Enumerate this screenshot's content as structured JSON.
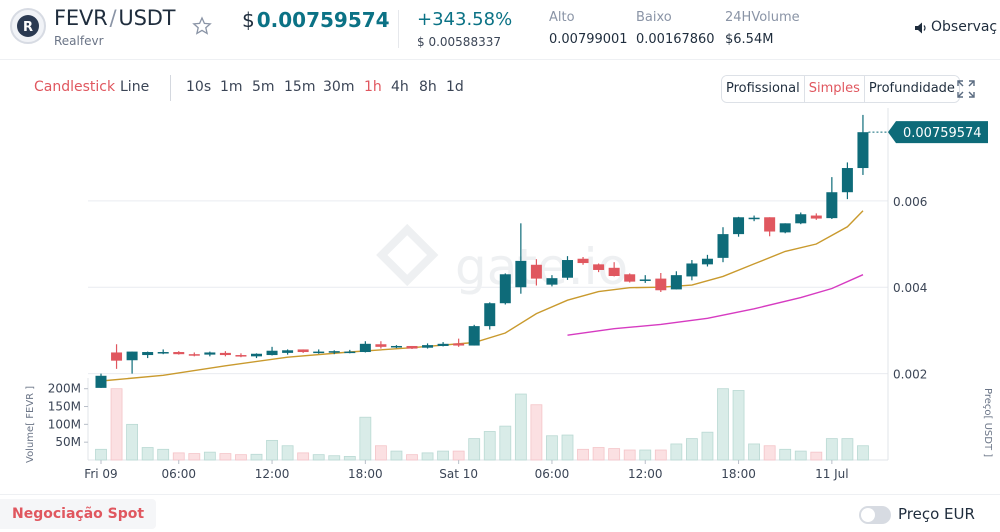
{
  "header": {
    "base": "FEVR",
    "quote": "USDT",
    "name": "Realfevr",
    "price_currency": "$",
    "price": "0.00759574",
    "change": "+343.58%",
    "price_usd": "$ 0.00588337",
    "high_label": "Alto",
    "high_value": "0.00799001",
    "low_label": "Baixo",
    "low_value": "0.00167860",
    "vol_label": "24HVolume",
    "vol_value": "$6.54M",
    "watch_label": "Observaç"
  },
  "toolbar": {
    "chart_types": [
      {
        "label": "Candlestick",
        "active": true
      },
      {
        "label": "Line",
        "active": false
      }
    ],
    "intervals": [
      {
        "label": "10s",
        "active": false
      },
      {
        "label": "1m",
        "active": false
      },
      {
        "label": "5m",
        "active": false
      },
      {
        "label": "15m",
        "active": false
      },
      {
        "label": "30m",
        "active": false
      },
      {
        "label": "1h",
        "active": true
      },
      {
        "label": "4h",
        "active": false
      },
      {
        "label": "8h",
        "active": false
      },
      {
        "label": "1d",
        "active": false
      }
    ],
    "modes": [
      {
        "label": "Profissional",
        "active": false
      },
      {
        "label": "Simples",
        "active": true
      },
      {
        "label": "Profundidade",
        "active": false
      }
    ]
  },
  "chart_data": {
    "type": "candlestick",
    "interval": "1h",
    "watermark": "gate.io",
    "current_price_label": "0.00759574",
    "y_ticks": [
      {
        "value": 0.002,
        "label": "0.002"
      },
      {
        "value": 0.004,
        "label": "0.004"
      },
      {
        "value": 0.006,
        "label": "0.006"
      }
    ],
    "y_axis_title": "Preço[ USDT ]",
    "ylim": [
      0.0,
      0.00815
    ],
    "volume_ticks": [
      {
        "value": 50,
        "label": "50M"
      },
      {
        "value": 100,
        "label": "100M"
      },
      {
        "value": 150,
        "label": "150M"
      },
      {
        "value": 200,
        "label": "200M"
      }
    ],
    "volume_axis_title": "Volume[ FEVR ]",
    "volume_ylim": [
      0,
      230
    ],
    "x_ticks": [
      {
        "index": 0,
        "label": "Fri 09"
      },
      {
        "index": 5,
        "label": "06:00"
      },
      {
        "index": 11,
        "label": "12:00"
      },
      {
        "index": 17,
        "label": "18:00"
      },
      {
        "index": 23,
        "label": "Sat 10"
      },
      {
        "index": 29,
        "label": "06:00"
      },
      {
        "index": 35,
        "label": "12:00"
      },
      {
        "index": 41,
        "label": "18:00"
      },
      {
        "index": 47,
        "label": "11 Jul"
      }
    ],
    "colors": {
      "up": "#0e6b79",
      "down": "#e0575f",
      "up_volume": "#d9ece8",
      "down_volume": "#fbe0e2",
      "ma_short": "#c99a2e",
      "ma_long": "#d63bc1",
      "grid": "#e9ecf0",
      "price_tag": "#0e6b79"
    },
    "candles": [
      {
        "o": 0.00167,
        "h": 0.002,
        "l": 0.00167,
        "c": 0.00195,
        "v": 30
      },
      {
        "o": 0.00249,
        "h": 0.00268,
        "l": 0.00211,
        "c": 0.0023,
        "v": 200
      },
      {
        "o": 0.00231,
        "h": 0.00251,
        "l": 0.002,
        "c": 0.00251,
        "v": 100
      },
      {
        "o": 0.00243,
        "h": 0.00251,
        "l": 0.00236,
        "c": 0.0025,
        "v": 35
      },
      {
        "o": 0.0025,
        "h": 0.00256,
        "l": 0.00245,
        "c": 0.0025,
        "v": 30
      },
      {
        "o": 0.0025,
        "h": 0.00252,
        "l": 0.00244,
        "c": 0.00245,
        "v": 20
      },
      {
        "o": 0.00245,
        "h": 0.00249,
        "l": 0.0024,
        "c": 0.00244,
        "v": 18
      },
      {
        "o": 0.00244,
        "h": 0.00251,
        "l": 0.0024,
        "c": 0.00249,
        "v": 22
      },
      {
        "o": 0.00248,
        "h": 0.00252,
        "l": 0.0024,
        "c": 0.00243,
        "v": 18
      },
      {
        "o": 0.00243,
        "h": 0.00247,
        "l": 0.00238,
        "c": 0.0024,
        "v": 15
      },
      {
        "o": 0.0024,
        "h": 0.00247,
        "l": 0.00236,
        "c": 0.00246,
        "v": 16
      },
      {
        "o": 0.00243,
        "h": 0.00262,
        "l": 0.00242,
        "c": 0.00253,
        "v": 55
      },
      {
        "o": 0.00248,
        "h": 0.00256,
        "l": 0.00244,
        "c": 0.00254,
        "v": 40
      },
      {
        "o": 0.00256,
        "h": 0.00256,
        "l": 0.00248,
        "c": 0.0025,
        "v": 20
      },
      {
        "o": 0.00251,
        "h": 0.00256,
        "l": 0.00246,
        "c": 0.00251,
        "v": 15
      },
      {
        "o": 0.0025,
        "h": 0.00254,
        "l": 0.00245,
        "c": 0.00252,
        "v": 12
      },
      {
        "o": 0.00249,
        "h": 0.00255,
        "l": 0.00247,
        "c": 0.00251,
        "v": 10
      },
      {
        "o": 0.0025,
        "h": 0.00275,
        "l": 0.00249,
        "c": 0.00269,
        "v": 120
      },
      {
        "o": 0.00268,
        "h": 0.00275,
        "l": 0.00258,
        "c": 0.00262,
        "v": 40
      },
      {
        "o": 0.00261,
        "h": 0.00266,
        "l": 0.00259,
        "c": 0.00264,
        "v": 25
      },
      {
        "o": 0.00264,
        "h": 0.00264,
        "l": 0.00257,
        "c": 0.00258,
        "v": 15
      },
      {
        "o": 0.0026,
        "h": 0.0027,
        "l": 0.00258,
        "c": 0.00266,
        "v": 20
      },
      {
        "o": 0.00264,
        "h": 0.00273,
        "l": 0.00263,
        "c": 0.00269,
        "v": 25
      },
      {
        "o": 0.0027,
        "h": 0.00281,
        "l": 0.00262,
        "c": 0.00265,
        "v": 25
      },
      {
        "o": 0.00265,
        "h": 0.00313,
        "l": 0.00265,
        "c": 0.0031,
        "v": 60
      },
      {
        "o": 0.0031,
        "h": 0.00365,
        "l": 0.00302,
        "c": 0.00363,
        "v": 80
      },
      {
        "o": 0.00363,
        "h": 0.00432,
        "l": 0.0036,
        "c": 0.0043,
        "v": 95
      },
      {
        "o": 0.004,
        "h": 0.00548,
        "l": 0.00385,
        "c": 0.00461,
        "v": 185
      },
      {
        "o": 0.00452,
        "h": 0.00465,
        "l": 0.00404,
        "c": 0.0042,
        "v": 155
      },
      {
        "o": 0.00406,
        "h": 0.00428,
        "l": 0.00402,
        "c": 0.00421,
        "v": 68
      },
      {
        "o": 0.00422,
        "h": 0.00472,
        "l": 0.00417,
        "c": 0.00463,
        "v": 70
      },
      {
        "o": 0.00466,
        "h": 0.0047,
        "l": 0.00452,
        "c": 0.00456,
        "v": 30
      },
      {
        "o": 0.00453,
        "h": 0.00455,
        "l": 0.00435,
        "c": 0.0044,
        "v": 35
      },
      {
        "o": 0.00445,
        "h": 0.00458,
        "l": 0.00425,
        "c": 0.00426,
        "v": 32
      },
      {
        "o": 0.0043,
        "h": 0.00432,
        "l": 0.00411,
        "c": 0.00413,
        "v": 28
      },
      {
        "o": 0.00418,
        "h": 0.00428,
        "l": 0.0041,
        "c": 0.00418,
        "v": 28
      },
      {
        "o": 0.0042,
        "h": 0.00433,
        "l": 0.00389,
        "c": 0.00393,
        "v": 28
      },
      {
        "o": 0.00395,
        "h": 0.00437,
        "l": 0.00395,
        "c": 0.00428,
        "v": 45
      },
      {
        "o": 0.00425,
        "h": 0.00463,
        "l": 0.00416,
        "c": 0.00455,
        "v": 60
      },
      {
        "o": 0.00453,
        "h": 0.00475,
        "l": 0.00448,
        "c": 0.00466,
        "v": 78
      },
      {
        "o": 0.00468,
        "h": 0.00539,
        "l": 0.00458,
        "c": 0.00523,
        "v": 200
      },
      {
        "o": 0.00523,
        "h": 0.00563,
        "l": 0.00517,
        "c": 0.00562,
        "v": 195
      },
      {
        "o": 0.0056,
        "h": 0.00566,
        "l": 0.00553,
        "c": 0.00561,
        "v": 45
      },
      {
        "o": 0.00562,
        "h": 0.00562,
        "l": 0.00518,
        "c": 0.00529,
        "v": 40
      },
      {
        "o": 0.00527,
        "h": 0.00548,
        "l": 0.00525,
        "c": 0.00548,
        "v": 30
      },
      {
        "o": 0.00548,
        "h": 0.00573,
        "l": 0.00546,
        "c": 0.00569,
        "v": 25
      },
      {
        "o": 0.00566,
        "h": 0.00571,
        "l": 0.00556,
        "c": 0.00559,
        "v": 22
      },
      {
        "o": 0.0056,
        "h": 0.00655,
        "l": 0.00558,
        "c": 0.0062,
        "v": 60
      },
      {
        "o": 0.0062,
        "h": 0.00689,
        "l": 0.00604,
        "c": 0.00676,
        "v": 60
      },
      {
        "o": 0.00676,
        "h": 0.00799,
        "l": 0.0066,
        "c": 0.00759,
        "v": 40
      }
    ],
    "ma_short": [
      {
        "i": 0,
        "y": 0.00183
      },
      {
        "i": 4,
        "y": 0.00196
      },
      {
        "i": 8,
        "y": 0.00218
      },
      {
        "i": 12,
        "y": 0.00238
      },
      {
        "i": 16,
        "y": 0.0025
      },
      {
        "i": 20,
        "y": 0.0026
      },
      {
        "i": 24,
        "y": 0.00272
      },
      {
        "i": 26,
        "y": 0.00294
      },
      {
        "i": 28,
        "y": 0.00339
      },
      {
        "i": 30,
        "y": 0.0037
      },
      {
        "i": 32,
        "y": 0.0039
      },
      {
        "i": 34,
        "y": 0.00399
      },
      {
        "i": 36,
        "y": 0.004
      },
      {
        "i": 38,
        "y": 0.00405
      },
      {
        "i": 40,
        "y": 0.00425
      },
      {
        "i": 42,
        "y": 0.00454
      },
      {
        "i": 44,
        "y": 0.00483
      },
      {
        "i": 46,
        "y": 0.005
      },
      {
        "i": 48,
        "y": 0.0054
      },
      {
        "i": 49,
        "y": 0.00577
      }
    ],
    "ma_long": [
      {
        "i": 30,
        "y": 0.00289
      },
      {
        "i": 33,
        "y": 0.00304
      },
      {
        "i": 36,
        "y": 0.00314
      },
      {
        "i": 39,
        "y": 0.00328
      },
      {
        "i": 42,
        "y": 0.0035
      },
      {
        "i": 45,
        "y": 0.00376
      },
      {
        "i": 47,
        "y": 0.00397
      },
      {
        "i": 49,
        "y": 0.00429
      }
    ]
  },
  "footer": {
    "spot_tab": "Negociação Spot",
    "eur_label": "Preço EUR"
  }
}
